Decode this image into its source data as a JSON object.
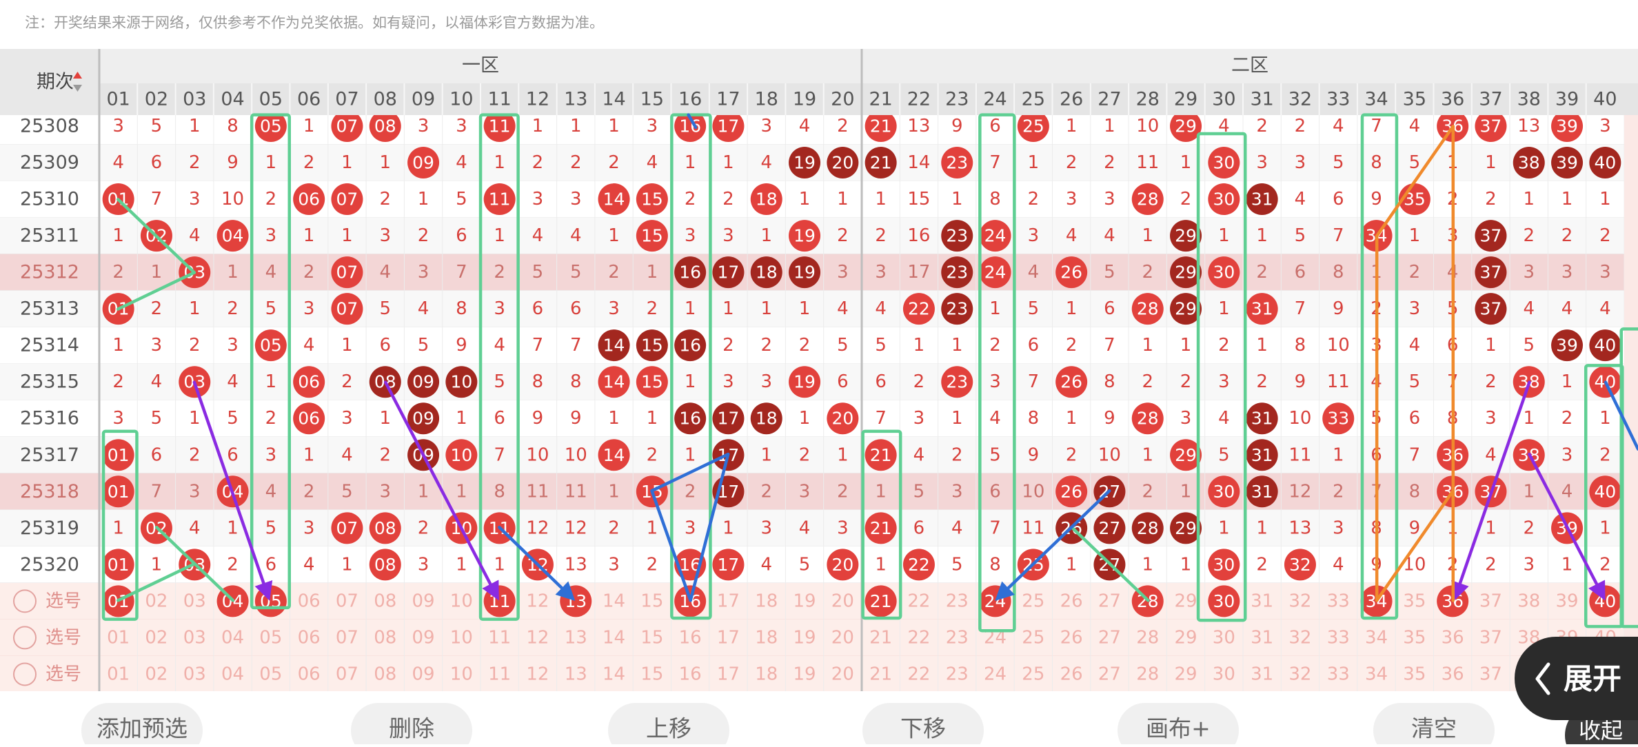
{
  "header": {
    "note": "注：开奖结果来源于网络，仅供参考不作为兑奖依据。如有疑问，以福体彩官方数据为准。",
    "period_header": "期次",
    "zones": [
      "一区",
      "二区"
    ],
    "columns": [
      "01",
      "02",
      "03",
      "04",
      "05",
      "06",
      "07",
      "08",
      "09",
      "10",
      "11",
      "12",
      "13",
      "14",
      "15",
      "16",
      "17",
      "18",
      "19",
      "20",
      "21",
      "22",
      "23",
      "24",
      "25",
      "26",
      "27",
      "28",
      "29",
      "30",
      "31",
      "32",
      "33",
      "34",
      "35",
      "36",
      "37",
      "38",
      "39",
      "40"
    ]
  },
  "ball_colors": {
    "red": "#e2413c",
    "dark": "#a3271f"
  },
  "rows": [
    {
      "issue": "25308",
      "highlight": false,
      "cells": [
        "3",
        "5",
        "1",
        "8",
        {
          "t": "05",
          "ball": "red"
        },
        "1",
        {
          "t": "07",
          "ball": "red"
        },
        {
          "t": "08",
          "ball": "red"
        },
        "3",
        "3",
        {
          "t": "11",
          "ball": "red"
        },
        "1",
        "1",
        "1",
        "3",
        {
          "t": "16",
          "ball": "red"
        },
        {
          "t": "17",
          "ball": "red"
        },
        "3",
        "4",
        "2",
        {
          "t": "21",
          "ball": "red"
        },
        "13",
        "9",
        "6",
        {
          "t": "25",
          "ball": "red"
        },
        "1",
        "1",
        "10",
        {
          "t": "29",
          "ball": "red"
        },
        "4",
        "2",
        "2",
        "4",
        "7",
        "4",
        {
          "t": "36",
          "ball": "red"
        },
        {
          "t": "37",
          "ball": "red"
        },
        "13",
        {
          "t": "39",
          "ball": "red"
        },
        "3"
      ]
    },
    {
      "issue": "25309",
      "highlight": false,
      "cells": [
        "4",
        "6",
        "2",
        "9",
        "1",
        "2",
        "1",
        "1",
        {
          "t": "09",
          "ball": "red"
        },
        "4",
        "1",
        "2",
        "2",
        "2",
        "4",
        "1",
        "1",
        "4",
        {
          "t": "19",
          "ball": "dark"
        },
        {
          "t": "20",
          "ball": "dark"
        },
        {
          "t": "21",
          "ball": "dark"
        },
        "14",
        {
          "t": "23",
          "ball": "red"
        },
        "7",
        "1",
        "2",
        "2",
        "11",
        "1",
        {
          "t": "30",
          "ball": "red"
        },
        "3",
        "3",
        "5",
        "8",
        "5",
        "1",
        "1",
        {
          "t": "38",
          "ball": "dark"
        },
        {
          "t": "39",
          "ball": "dark"
        },
        {
          "t": "40",
          "ball": "dark"
        }
      ]
    },
    {
      "issue": "25310",
      "highlight": false,
      "cells": [
        {
          "t": "01",
          "ball": "red"
        },
        "7",
        "3",
        "10",
        "2",
        {
          "t": "06",
          "ball": "red"
        },
        {
          "t": "07",
          "ball": "red"
        },
        "2",
        "1",
        "5",
        {
          "t": "11",
          "ball": "red"
        },
        "3",
        "3",
        {
          "t": "14",
          "ball": "red"
        },
        {
          "t": "15",
          "ball": "red"
        },
        "2",
        "2",
        {
          "t": "18",
          "ball": "red"
        },
        "1",
        "1",
        "1",
        "15",
        "1",
        "8",
        "2",
        "3",
        "3",
        {
          "t": "28",
          "ball": "red"
        },
        "2",
        {
          "t": "30",
          "ball": "red"
        },
        {
          "t": "31",
          "ball": "dark"
        },
        "4",
        "6",
        "9",
        {
          "t": "35",
          "ball": "red"
        },
        "2",
        "2",
        "1",
        "1",
        "1"
      ]
    },
    {
      "issue": "25311",
      "highlight": false,
      "cells": [
        "1",
        {
          "t": "02",
          "ball": "red"
        },
        "4",
        {
          "t": "04",
          "ball": "red"
        },
        "3",
        "1",
        "1",
        "3",
        "2",
        "6",
        "1",
        "4",
        "4",
        "1",
        {
          "t": "15",
          "ball": "red"
        },
        "3",
        "3",
        "1",
        {
          "t": "19",
          "ball": "red"
        },
        "2",
        "2",
        "16",
        {
          "t": "23",
          "ball": "dark"
        },
        {
          "t": "24",
          "ball": "red"
        },
        "3",
        "4",
        "4",
        "1",
        {
          "t": "29",
          "ball": "dark"
        },
        "1",
        "1",
        "5",
        "7",
        {
          "t": "34",
          "ball": "red"
        },
        "1",
        "3",
        {
          "t": "37",
          "ball": "dark"
        },
        "2",
        "2",
        "2"
      ]
    },
    {
      "issue": "25312",
      "highlight": true,
      "cells": [
        "2",
        "1",
        {
          "t": "03",
          "ball": "red"
        },
        "1",
        "4",
        "2",
        {
          "t": "07",
          "ball": "red"
        },
        "4",
        "3",
        "7",
        "2",
        "5",
        "5",
        "2",
        "1",
        {
          "t": "16",
          "ball": "dark"
        },
        {
          "t": "17",
          "ball": "dark"
        },
        {
          "t": "18",
          "ball": "dark"
        },
        {
          "t": "19",
          "ball": "dark"
        },
        "3",
        "3",
        "17",
        {
          "t": "23",
          "ball": "dark"
        },
        {
          "t": "24",
          "ball": "red"
        },
        "4",
        {
          "t": "26",
          "ball": "red"
        },
        "5",
        "2",
        {
          "t": "29",
          "ball": "dark"
        },
        {
          "t": "30",
          "ball": "red"
        },
        "2",
        "6",
        "8",
        "1",
        "2",
        "4",
        {
          "t": "37",
          "ball": "dark"
        },
        "3",
        "3",
        "3"
      ]
    },
    {
      "issue": "25313",
      "highlight": false,
      "cells": [
        {
          "t": "01",
          "ball": "red"
        },
        "2",
        "1",
        "2",
        "5",
        "3",
        {
          "t": "07",
          "ball": "red"
        },
        "5",
        "4",
        "8",
        "3",
        "6",
        "6",
        "3",
        "2",
        "1",
        "1",
        "1",
        "1",
        "4",
        "4",
        {
          "t": "22",
          "ball": "red"
        },
        {
          "t": "23",
          "ball": "dark"
        },
        "1",
        "5",
        "1",
        "6",
        {
          "t": "28",
          "ball": "red"
        },
        {
          "t": "29",
          "ball": "dark"
        },
        "1",
        {
          "t": "31",
          "ball": "red"
        },
        "7",
        "9",
        "2",
        "3",
        "5",
        {
          "t": "37",
          "ball": "dark"
        },
        "4",
        "4",
        "4"
      ]
    },
    {
      "issue": "25314",
      "highlight": false,
      "cells": [
        "1",
        "3",
        "2",
        "3",
        {
          "t": "05",
          "ball": "red"
        },
        "4",
        "1",
        "6",
        "5",
        "9",
        "4",
        "7",
        "7",
        {
          "t": "14",
          "ball": "dark"
        },
        {
          "t": "15",
          "ball": "dark"
        },
        {
          "t": "16",
          "ball": "dark"
        },
        "2",
        "2",
        "2",
        "5",
        "5",
        "1",
        "1",
        "2",
        "6",
        "2",
        "7",
        "1",
        "1",
        "2",
        "1",
        "8",
        "10",
        "3",
        "4",
        "6",
        "1",
        "5",
        {
          "t": "39",
          "ball": "dark"
        },
        {
          "t": "40",
          "ball": "dark"
        }
      ]
    },
    {
      "issue": "25315",
      "highlight": false,
      "cells": [
        "2",
        "4",
        {
          "t": "03",
          "ball": "red"
        },
        "4",
        "1",
        {
          "t": "06",
          "ball": "red"
        },
        "2",
        {
          "t": "08",
          "ball": "dark"
        },
        {
          "t": "09",
          "ball": "dark"
        },
        {
          "t": "10",
          "ball": "dark"
        },
        "5",
        "8",
        "8",
        {
          "t": "14",
          "ball": "red"
        },
        {
          "t": "15",
          "ball": "red"
        },
        "1",
        "3",
        "3",
        {
          "t": "19",
          "ball": "red"
        },
        "6",
        "6",
        "2",
        {
          "t": "23",
          "ball": "red"
        },
        "3",
        "7",
        {
          "t": "26",
          "ball": "red"
        },
        "8",
        "2",
        "2",
        "3",
        "2",
        "9",
        "11",
        "4",
        "5",
        "7",
        "2",
        {
          "t": "38",
          "ball": "red"
        },
        "1",
        {
          "t": "40",
          "ball": "red"
        }
      ]
    },
    {
      "issue": "25316",
      "highlight": false,
      "cells": [
        "3",
        "5",
        "1",
        "5",
        "2",
        {
          "t": "06",
          "ball": "red"
        },
        "3",
        "1",
        {
          "t": "09",
          "ball": "dark"
        },
        "1",
        "6",
        "9",
        "9",
        "1",
        "1",
        {
          "t": "16",
          "ball": "dark"
        },
        {
          "t": "17",
          "ball": "dark"
        },
        {
          "t": "18",
          "ball": "dark"
        },
        "1",
        {
          "t": "20",
          "ball": "red"
        },
        "7",
        "3",
        "1",
        "4",
        "8",
        "1",
        "9",
        {
          "t": "28",
          "ball": "red"
        },
        "3",
        "4",
        {
          "t": "31",
          "ball": "dark"
        },
        "10",
        {
          "t": "33",
          "ball": "red"
        },
        "5",
        "6",
        "8",
        "3",
        "1",
        "2",
        "1"
      ]
    },
    {
      "issue": "25317",
      "highlight": false,
      "cells": [
        {
          "t": "01",
          "ball": "red"
        },
        "6",
        "2",
        "6",
        "3",
        "1",
        "4",
        "2",
        {
          "t": "09",
          "ball": "dark"
        },
        {
          "t": "10",
          "ball": "red"
        },
        "7",
        "10",
        "10",
        {
          "t": "14",
          "ball": "red"
        },
        "2",
        "1",
        {
          "t": "17",
          "ball": "dark"
        },
        "1",
        "2",
        "1",
        {
          "t": "21",
          "ball": "red"
        },
        "4",
        "2",
        "5",
        "9",
        "2",
        "10",
        "1",
        {
          "t": "29",
          "ball": "red"
        },
        "5",
        {
          "t": "31",
          "ball": "dark"
        },
        "11",
        "1",
        "6",
        "7",
        {
          "t": "36",
          "ball": "red"
        },
        "4",
        {
          "t": "38",
          "ball": "red"
        },
        "3",
        "2"
      ]
    },
    {
      "issue": "25318",
      "highlight": true,
      "cells": [
        {
          "t": "01",
          "ball": "red"
        },
        "7",
        "3",
        {
          "t": "04",
          "ball": "red"
        },
        "4",
        "2",
        "5",
        "3",
        "1",
        "1",
        "8",
        "11",
        "11",
        "1",
        {
          "t": "15",
          "ball": "red"
        },
        "2",
        {
          "t": "17",
          "ball": "dark"
        },
        "2",
        "3",
        "2",
        "1",
        "5",
        "3",
        "6",
        "10",
        {
          "t": "26",
          "ball": "red"
        },
        {
          "t": "27",
          "ball": "dark"
        },
        "2",
        "1",
        {
          "t": "30",
          "ball": "red"
        },
        {
          "t": "31",
          "ball": "dark"
        },
        "12",
        "2",
        "7",
        "8",
        {
          "t": "36",
          "ball": "red"
        },
        {
          "t": "37",
          "ball": "red"
        },
        "1",
        "4",
        {
          "t": "40",
          "ball": "red"
        }
      ]
    },
    {
      "issue": "25319",
      "highlight": false,
      "cells": [
        "1",
        {
          "t": "02",
          "ball": "red"
        },
        "4",
        "1",
        "5",
        "3",
        {
          "t": "07",
          "ball": "red"
        },
        {
          "t": "08",
          "ball": "red"
        },
        "2",
        {
          "t": "10",
          "ball": "red"
        },
        {
          "t": "11",
          "ball": "red"
        },
        "12",
        "12",
        "2",
        "1",
        "3",
        "1",
        "3",
        "4",
        "3",
        {
          "t": "21",
          "ball": "red"
        },
        "6",
        "4",
        "7",
        "11",
        {
          "t": "26",
          "ball": "dark"
        },
        {
          "t": "27",
          "ball": "dark"
        },
        {
          "t": "28",
          "ball": "dark"
        },
        {
          "t": "29",
          "ball": "dark"
        },
        "1",
        "1",
        "13",
        "3",
        "8",
        "9",
        "1",
        "1",
        "2",
        {
          "t": "39",
          "ball": "red"
        },
        "1"
      ]
    },
    {
      "issue": "25320",
      "highlight": false,
      "cells": [
        {
          "t": "01",
          "ball": "red"
        },
        "1",
        {
          "t": "03",
          "ball": "red"
        },
        "2",
        "6",
        "4",
        "1",
        {
          "t": "08",
          "ball": "red"
        },
        "3",
        "1",
        "1",
        {
          "t": "12",
          "ball": "red"
        },
        "13",
        "3",
        "2",
        {
          "t": "16",
          "ball": "red"
        },
        {
          "t": "17",
          "ball": "red"
        },
        "4",
        "5",
        {
          "t": "20",
          "ball": "red"
        },
        "1",
        {
          "t": "22",
          "ball": "red"
        },
        "5",
        "8",
        {
          "t": "25",
          "ball": "red"
        },
        "1",
        {
          "t": "27",
          "ball": "dark"
        },
        "1",
        "1",
        {
          "t": "30",
          "ball": "red"
        },
        "2",
        {
          "t": "32",
          "ball": "red"
        },
        "4",
        "9",
        "10",
        "2",
        "2",
        "3",
        "1",
        "2"
      ]
    }
  ],
  "selection_rows": [
    {
      "label": "选号",
      "cells": [
        {
          "t": "01",
          "ball": "red"
        },
        "02",
        "03",
        {
          "t": "04",
          "ball": "red"
        },
        {
          "t": "05",
          "ball": "red"
        },
        "06",
        "07",
        "08",
        "09",
        "10",
        {
          "t": "11",
          "ball": "red"
        },
        "12",
        {
          "t": "13",
          "ball": "red"
        },
        "14",
        "15",
        {
          "t": "16",
          "ball": "red"
        },
        "17",
        "18",
        "19",
        "20",
        {
          "t": "21",
          "ball": "red"
        },
        "22",
        "23",
        {
          "t": "24",
          "ball": "red"
        },
        "25",
        "26",
        "27",
        {
          "t": "28",
          "ball": "red"
        },
        "29",
        {
          "t": "30",
          "ball": "red"
        },
        "31",
        "32",
        "33",
        {
          "t": "34",
          "ball": "red"
        },
        "35",
        {
          "t": "36",
          "ball": "red"
        },
        "37",
        "38",
        "39",
        {
          "t": "40",
          "ball": "red"
        }
      ]
    },
    {
      "label": "选号",
      "cells": [
        "01",
        "02",
        "03",
        "04",
        "05",
        "06",
        "07",
        "08",
        "09",
        "10",
        "11",
        "12",
        "13",
        "14",
        "15",
        "16",
        "17",
        "18",
        "19",
        "20",
        "21",
        "22",
        "23",
        "24",
        "25",
        "26",
        "27",
        "28",
        "29",
        "30",
        "31",
        "32",
        "33",
        "34",
        "35",
        "36",
        "37",
        "38",
        "39",
        "40"
      ]
    },
    {
      "label": "选号",
      "cells": [
        "01",
        "02",
        "03",
        "04",
        "05",
        "06",
        "07",
        "08",
        "09",
        "10",
        "11",
        "12",
        "13",
        "14",
        "15",
        "16",
        "17",
        "18",
        "19",
        "20",
        "21",
        "22",
        "23",
        "24",
        "25",
        "26",
        "27",
        "28",
        "29",
        "30",
        "31",
        "32",
        "33",
        "34",
        "35",
        "36",
        "37",
        "38",
        "39",
        "40"
      ]
    }
  ],
  "buttons": [
    "添加预选",
    "删除",
    "上移",
    "下移",
    "画布+",
    "清空"
  ],
  "expand": "展开",
  "collapse": "收起"
}
